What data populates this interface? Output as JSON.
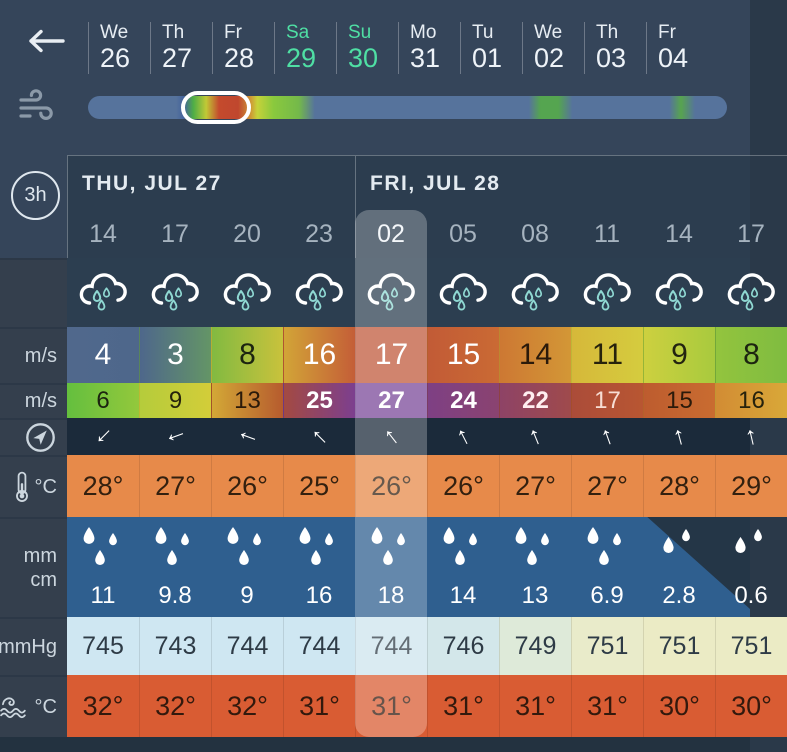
{
  "topbar": {
    "back_icon": "arrow-left",
    "accent_color": "#4fdfa4",
    "date_tabs": [
      {
        "dow": "We",
        "date": "26",
        "accent": false
      },
      {
        "dow": "Th",
        "date": "27",
        "accent": false
      },
      {
        "dow": "Fr",
        "date": "28",
        "accent": false
      },
      {
        "dow": "Sa",
        "date": "29",
        "accent": true
      },
      {
        "dow": "Su",
        "date": "30",
        "accent": true
      },
      {
        "dow": "Mo",
        "date": "31",
        "accent": false
      },
      {
        "dow": "Tu",
        "date": "01",
        "accent": false
      },
      {
        "dow": "We",
        "date": "02",
        "accent": false
      },
      {
        "dow": "Th",
        "date": "03",
        "accent": false
      },
      {
        "dow": "Fr",
        "date": "04",
        "accent": false
      }
    ]
  },
  "timeline": {
    "icon": "wind-gusts-icon",
    "base_color": "#56739c",
    "gradient_stops": [
      [
        0,
        "#56739c"
      ],
      [
        13.8,
        "#56739c"
      ],
      [
        15,
        "#44639c"
      ],
      [
        16.5,
        "#4fae46"
      ],
      [
        18.5,
        "#c1c936"
      ],
      [
        20.5,
        "#c44a2d"
      ],
      [
        23.5,
        "#c0472e"
      ],
      [
        25.5,
        "#cf9a36"
      ],
      [
        26.5,
        "#c6d23a"
      ],
      [
        29,
        "#8ac93d"
      ],
      [
        33,
        "#74b94a"
      ],
      [
        35.5,
        "#56739c"
      ],
      [
        69,
        "#56739c"
      ],
      [
        70.8,
        "#55a550"
      ],
      [
        73.6,
        "#55a550"
      ],
      [
        75.8,
        "#56739c"
      ],
      [
        91,
        "#56739c"
      ],
      [
        92.8,
        "#57a44f"
      ],
      [
        95,
        "#56739c"
      ],
      [
        100,
        "#56739c"
      ]
    ]
  },
  "table": {
    "interval_badge": "3h",
    "day_groups": [
      {
        "title": "THU, JUL 27",
        "col_start": 0,
        "col_count": 4
      },
      {
        "title": "FRI, JUL 28",
        "col_start": 4,
        "col_count": 6
      }
    ],
    "hours": [
      "14",
      "17",
      "20",
      "23",
      "02",
      "05",
      "08",
      "11",
      "14",
      "17"
    ],
    "selected_col": 4,
    "highlight_color": "rgba(255,255,255,0.26)",
    "rows": {
      "weather": {
        "icons": [
          "rain-cloud-icon",
          "rain-cloud-icon",
          "rain-cloud-icon",
          "rain-cloud-icon",
          "rain-cloud-icon",
          "rain-cloud-icon",
          "rain-cloud-icon",
          "rain-cloud-icon",
          "rain-cloud-icon",
          "rain-cloud-icon"
        ],
        "drop_color": "#8fd8d2"
      },
      "wind": {
        "unit": "m/s",
        "values": [
          "4",
          "3",
          "8",
          "16",
          "17",
          "15",
          "14",
          "11",
          "9",
          "8"
        ],
        "text_colors": [
          "#ffffff",
          "#ffffff",
          "#1c2410",
          "#ffffff",
          "#ffffff",
          "#ffffff",
          "#2b1a0a",
          "#26220c",
          "#232410",
          "#1c2410"
        ],
        "cell_bg": [
          [
            "#50688c",
            "#4e678b"
          ],
          [
            "#4e678b",
            "#649566"
          ],
          [
            "#82ba41",
            "#c9c23c"
          ],
          [
            "#d2a437",
            "#c45e37"
          ],
          [
            "#c05a3c",
            "#c05a3c"
          ],
          [
            "#c25b36",
            "#ca6a34"
          ],
          [
            "#cd7833",
            "#d39736"
          ],
          [
            "#d6b83a",
            "#d5cc3e"
          ],
          [
            "#cdd03f",
            "#a8ca3e"
          ],
          [
            "#93c43e",
            "#7fbc40"
          ]
        ]
      },
      "gust": {
        "unit": "m/s",
        "values": [
          "6",
          "9",
          "13",
          "25",
          "27",
          "24",
          "22",
          "17",
          "15",
          "16"
        ],
        "text_colors": [
          "#1c2410",
          "#26220c",
          "#2b1a0a",
          "#ffffff",
          "#ffffff",
          "#ffffff",
          "#ffeef0",
          "#f7ddd3",
          "#2b1a0a",
          "#26220c"
        ],
        "bold": [
          false,
          false,
          false,
          true,
          true,
          true,
          true,
          false,
          false,
          false
        ],
        "cell_bg": [
          [
            "#64bf3e",
            "#93c83c"
          ],
          [
            "#b5cc3b",
            "#d3cd39"
          ],
          [
            "#d3a836",
            "#b65b2e"
          ],
          [
            "#a34a42",
            "#7c3f8f"
          ],
          [
            "#7a4899",
            "#7a4899"
          ],
          [
            "#7e4084",
            "#8a4370"
          ],
          [
            "#8e4366",
            "#9f4a4c"
          ],
          [
            "#ab4c39",
            "#b85632"
          ],
          [
            "#bd5c2f",
            "#c96c30"
          ],
          [
            "#d28c34",
            "#d9a838"
          ]
        ]
      },
      "direction": {
        "icon": "compass-icon",
        "arrow_glyph": "↑",
        "angles_deg": [
          225,
          250,
          290,
          315,
          322,
          333,
          338,
          340,
          345,
          347
        ]
      },
      "temp": {
        "icon": "thermometer-icon",
        "unit": "°C",
        "values": [
          "28°",
          "27°",
          "26°",
          "25°",
          "26°",
          "26°",
          "27°",
          "27°",
          "28°",
          "29°"
        ],
        "bg": "#e78a4a",
        "text_color": "#33200f"
      },
      "precip": {
        "unit_top": "mm",
        "unit_bottom": "cm",
        "values": [
          "11",
          "9.8",
          "9",
          "16",
          "18",
          "14",
          "13",
          "6.9",
          "2.8",
          "0.6"
        ],
        "drops": [
          3,
          3,
          3,
          3,
          3,
          3,
          3,
          3,
          2,
          2
        ],
        "bg": "#2f5f8f",
        "dark_corner_color": "#243647"
      },
      "pressure": {
        "unit": "mmHg",
        "values": [
          "745",
          "743",
          "744",
          "744",
          "744",
          "746",
          "749",
          "751",
          "751",
          "751"
        ],
        "cell_bg": [
          "#cfe7f2",
          "#cfe7f2",
          "#cfe7f2",
          "#cfe7f2",
          "#cde4ee",
          "#d3e7ea",
          "#deead9",
          "#e9ebca",
          "#ebebc5",
          "#ebebc5"
        ],
        "text_color": "#2e3b46"
      },
      "water": {
        "icon": "sea-wave-icon",
        "unit": "°C",
        "values": [
          "32°",
          "32°",
          "32°",
          "31°",
          "31°",
          "31°",
          "31°",
          "31°",
          "30°",
          "30°"
        ],
        "bg": "#d95c33",
        "text_color": "#33190d"
      }
    }
  }
}
